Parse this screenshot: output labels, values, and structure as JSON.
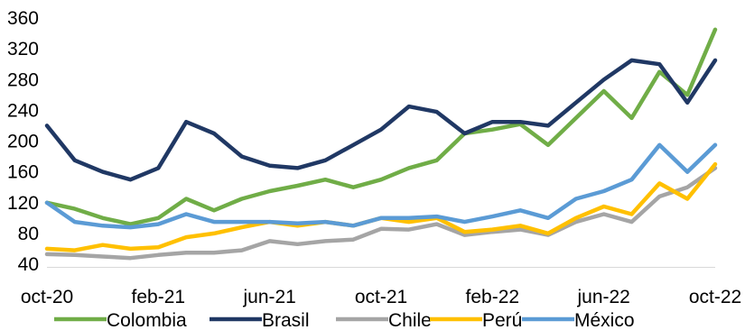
{
  "chart_data": {
    "type": "line",
    "x_ticks": [
      "oct-20",
      "feb-21",
      "jun-21",
      "oct-21",
      "feb-22",
      "jun-22",
      "oct-22"
    ],
    "ylim": [
      40,
      360
    ],
    "y_ticks": [
      40,
      80,
      120,
      160,
      200,
      240,
      280,
      320,
      360
    ],
    "grid": false,
    "legend_position": "bottom",
    "series": [
      {
        "name": "Colombia",
        "color": "#70ad47",
        "points": [
          [
            "oct-20",
            120
          ],
          [
            "nov-20",
            112
          ],
          [
            "dic-20",
            100
          ],
          [
            "ene-21",
            92
          ],
          [
            "feb-21",
            100
          ],
          [
            "mar-21",
            125
          ],
          [
            "abr-21",
            110
          ],
          [
            "may-21",
            125
          ],
          [
            "jun-21",
            135
          ],
          [
            "jul-21",
            142
          ],
          [
            "ago-21",
            150
          ],
          [
            "sep-21",
            140
          ],
          [
            "oct-21",
            150
          ],
          [
            "nov-21",
            165
          ],
          [
            "dic-21",
            175
          ],
          [
            "ene-22",
            210
          ],
          [
            "feb-22",
            215
          ],
          [
            "mar-22",
            222
          ],
          [
            "abr-22",
            195
          ],
          [
            "may-22",
            230
          ],
          [
            "jun-22",
            265
          ],
          [
            "jul-22",
            230
          ],
          [
            "ago-22",
            290
          ],
          [
            "sep-22",
            260
          ],
          [
            "oct-22",
            345
          ]
        ]
      },
      {
        "name": "Brasil",
        "color": "#203864",
        "points": [
          [
            "oct-20",
            220
          ],
          [
            "nov-20",
            175
          ],
          [
            "dic-20",
            160
          ],
          [
            "ene-21",
            150
          ],
          [
            "feb-21",
            165
          ],
          [
            "mar-21",
            225
          ],
          [
            "abr-21",
            210
          ],
          [
            "may-21",
            180
          ],
          [
            "jun-21",
            168
          ],
          [
            "jul-21",
            165
          ],
          [
            "ago-21",
            175
          ],
          [
            "sep-21",
            195
          ],
          [
            "oct-21",
            215
          ],
          [
            "nov-21",
            245
          ],
          [
            "dic-21",
            238
          ],
          [
            "ene-22",
            210
          ],
          [
            "feb-22",
            225
          ],
          [
            "mar-22",
            225
          ],
          [
            "abr-22",
            220
          ],
          [
            "may-22",
            250
          ],
          [
            "jun-22",
            280
          ],
          [
            "jul-22",
            305
          ],
          [
            "ago-22",
            300
          ],
          [
            "sep-22",
            250
          ],
          [
            "oct-22",
            305
          ]
        ]
      },
      {
        "name": "Chile",
        "color": "#a5a5a5",
        "points": [
          [
            "oct-20",
            53
          ],
          [
            "nov-20",
            52
          ],
          [
            "dic-20",
            50
          ],
          [
            "ene-21",
            48
          ],
          [
            "feb-21",
            52
          ],
          [
            "mar-21",
            55
          ],
          [
            "abr-21",
            55
          ],
          [
            "may-21",
            58
          ],
          [
            "jun-21",
            70
          ],
          [
            "jul-21",
            66
          ],
          [
            "ago-21",
            70
          ],
          [
            "sep-21",
            72
          ],
          [
            "oct-21",
            86
          ],
          [
            "nov-21",
            85
          ],
          [
            "dic-21",
            92
          ],
          [
            "ene-22",
            78
          ],
          [
            "feb-22",
            82
          ],
          [
            "mar-22",
            85
          ],
          [
            "abr-22",
            78
          ],
          [
            "may-22",
            95
          ],
          [
            "jun-22",
            105
          ],
          [
            "jul-22",
            95
          ],
          [
            "ago-22",
            128
          ],
          [
            "sep-22",
            140
          ],
          [
            "oct-22",
            165
          ]
        ]
      },
      {
        "name": "Perú",
        "color": "#ffc000",
        "points": [
          [
            "oct-20",
            60
          ],
          [
            "nov-20",
            58
          ],
          [
            "dic-20",
            65
          ],
          [
            "ene-21",
            60
          ],
          [
            "feb-21",
            62
          ],
          [
            "mar-21",
            75
          ],
          [
            "abr-21",
            80
          ],
          [
            "may-21",
            88
          ],
          [
            "jun-21",
            95
          ],
          [
            "jul-21",
            90
          ],
          [
            "ago-21",
            95
          ],
          [
            "sep-21",
            90
          ],
          [
            "oct-21",
            100
          ],
          [
            "nov-21",
            95
          ],
          [
            "dic-21",
            100
          ],
          [
            "ene-22",
            82
          ],
          [
            "feb-22",
            85
          ],
          [
            "mar-22",
            90
          ],
          [
            "abr-22",
            80
          ],
          [
            "may-22",
            100
          ],
          [
            "jun-22",
            115
          ],
          [
            "jul-22",
            105
          ],
          [
            "ago-22",
            145
          ],
          [
            "sep-22",
            125
          ],
          [
            "oct-22",
            170
          ]
        ]
      },
      {
        "name": "México",
        "color": "#5b9bd5",
        "points": [
          [
            "oct-20",
            120
          ],
          [
            "nov-20",
            95
          ],
          [
            "dic-20",
            90
          ],
          [
            "ene-21",
            88
          ],
          [
            "feb-21",
            92
          ],
          [
            "mar-21",
            105
          ],
          [
            "abr-21",
            95
          ],
          [
            "may-21",
            95
          ],
          [
            "jun-21",
            95
          ],
          [
            "jul-21",
            93
          ],
          [
            "ago-21",
            95
          ],
          [
            "sep-21",
            90
          ],
          [
            "oct-21",
            100
          ],
          [
            "nov-21",
            100
          ],
          [
            "dic-21",
            102
          ],
          [
            "ene-22",
            95
          ],
          [
            "feb-22",
            102
          ],
          [
            "mar-22",
            110
          ],
          [
            "abr-22",
            100
          ],
          [
            "may-22",
            125
          ],
          [
            "jun-22",
            135
          ],
          [
            "jul-22",
            150
          ],
          [
            "ago-22",
            195
          ],
          [
            "sep-22",
            160
          ],
          [
            "oct-22",
            195
          ]
        ]
      }
    ]
  }
}
